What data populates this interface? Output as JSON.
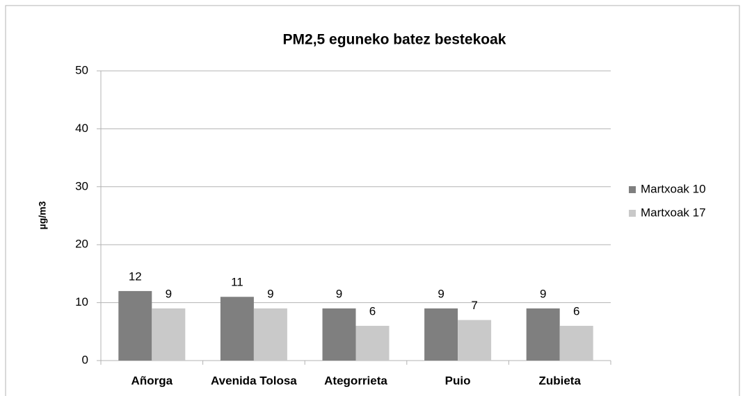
{
  "chart_data": {
    "type": "bar",
    "title": "PM2,5 eguneko batez bestekoak",
    "y_label": "µg/m3",
    "categories": [
      "Añorga",
      "Avenida Tolosa",
      "Ategorrieta",
      "Puio",
      "Zubieta"
    ],
    "series": [
      {
        "name": "Martxoak 10",
        "color": "#7f7f7f",
        "values": [
          12,
          11,
          9,
          9,
          9
        ]
      },
      {
        "name": "Martxoak 17",
        "color": "#c9c9c9",
        "values": [
          9,
          9,
          6,
          7,
          6
        ]
      }
    ],
    "ylim": [
      0,
      50
    ],
    "yticks": [
      0,
      10,
      20,
      30,
      40,
      50
    ],
    "grid": true,
    "legend": "right"
  }
}
